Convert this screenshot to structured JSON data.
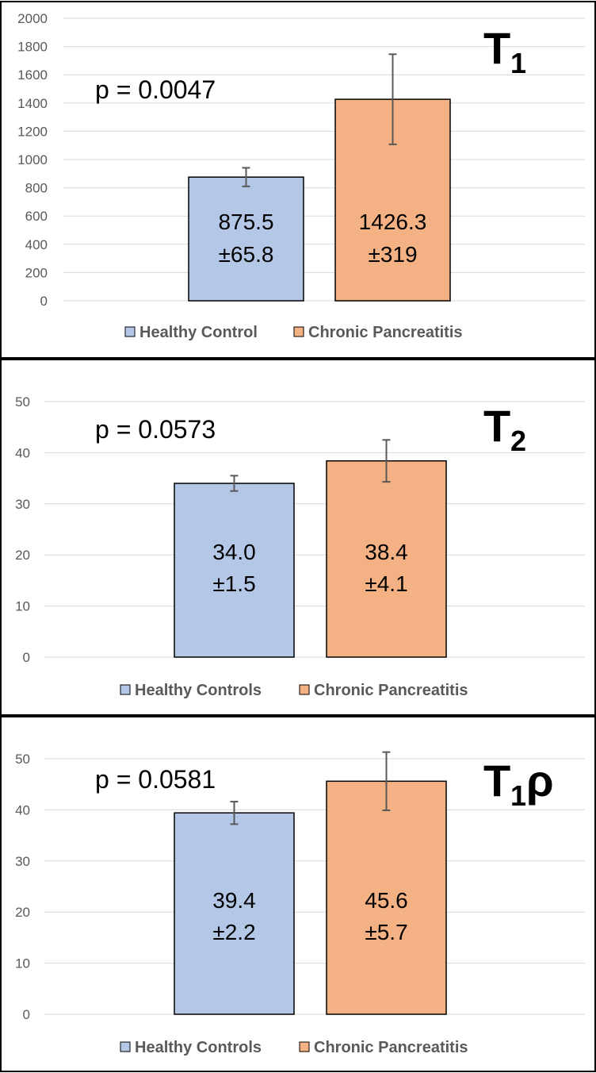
{
  "colors": {
    "healthy": "#b4c7e7",
    "chronic": "#f4b183",
    "bar_edge": "#000000",
    "grid": "#d9d9d9",
    "tick_text": "#595959",
    "legend_text": "#595959",
    "border": "#000000",
    "error_bar": "#595959"
  },
  "chart_data": [
    {
      "type": "bar",
      "title_main": "T",
      "title_sub": "1",
      "title_suffix": "",
      "p_value": "p = 0.0047",
      "categories": [
        "Healthy Control",
        "Chronic Pancreatitis"
      ],
      "values": [
        875.5,
        1426.3
      ],
      "errors": [
        65.8,
        319
      ],
      "bar_labels": [
        [
          "875.5",
          "±65.8"
        ],
        [
          "1426.3",
          "±319"
        ]
      ],
      "legend": [
        "Healthy Control",
        "Chronic Pancreatitis"
      ],
      "legend_placement": "bottom",
      "ylim": [
        0,
        2000
      ],
      "yticks": [
        "0",
        "200",
        "400",
        "600",
        "800",
        "1000",
        "1200",
        "1400",
        "1600",
        "1800",
        "2000"
      ],
      "grid": true
    },
    {
      "type": "bar",
      "title_main": "T",
      "title_sub": "2",
      "title_suffix": "",
      "p_value": "p = 0.0573",
      "categories": [
        "Healthy Controls",
        "Chronic Pancreatitis"
      ],
      "values": [
        34.0,
        38.4
      ],
      "errors": [
        1.5,
        4.1
      ],
      "bar_labels": [
        [
          "34.0",
          "±1.5"
        ],
        [
          "38.4",
          "±4.1"
        ]
      ],
      "legend": [
        "Healthy Controls",
        "Chronic Pancreatitis"
      ],
      "legend_placement": "bottom",
      "ylim": [
        0,
        50
      ],
      "yticks": [
        "0",
        "10",
        "20",
        "30",
        "40",
        "50"
      ],
      "grid": true
    },
    {
      "type": "bar",
      "title_main": "T",
      "title_sub": "1",
      "title_suffix": "ρ",
      "p_value": "p = 0.0581",
      "categories": [
        "Healthy Controls",
        "Chronic Pancreatitis"
      ],
      "values": [
        39.4,
        45.6
      ],
      "errors": [
        2.2,
        5.7
      ],
      "bar_labels": [
        [
          "39.4",
          "±2.2"
        ],
        [
          "45.6",
          "±5.7"
        ]
      ],
      "legend": [
        "Healthy Controls",
        "Chronic Pancreatitis"
      ],
      "legend_placement": "bottom",
      "ylim": [
        0,
        50
      ],
      "yticks": [
        "0",
        "10",
        "20",
        "30",
        "40",
        "50"
      ],
      "grid": true
    }
  ]
}
